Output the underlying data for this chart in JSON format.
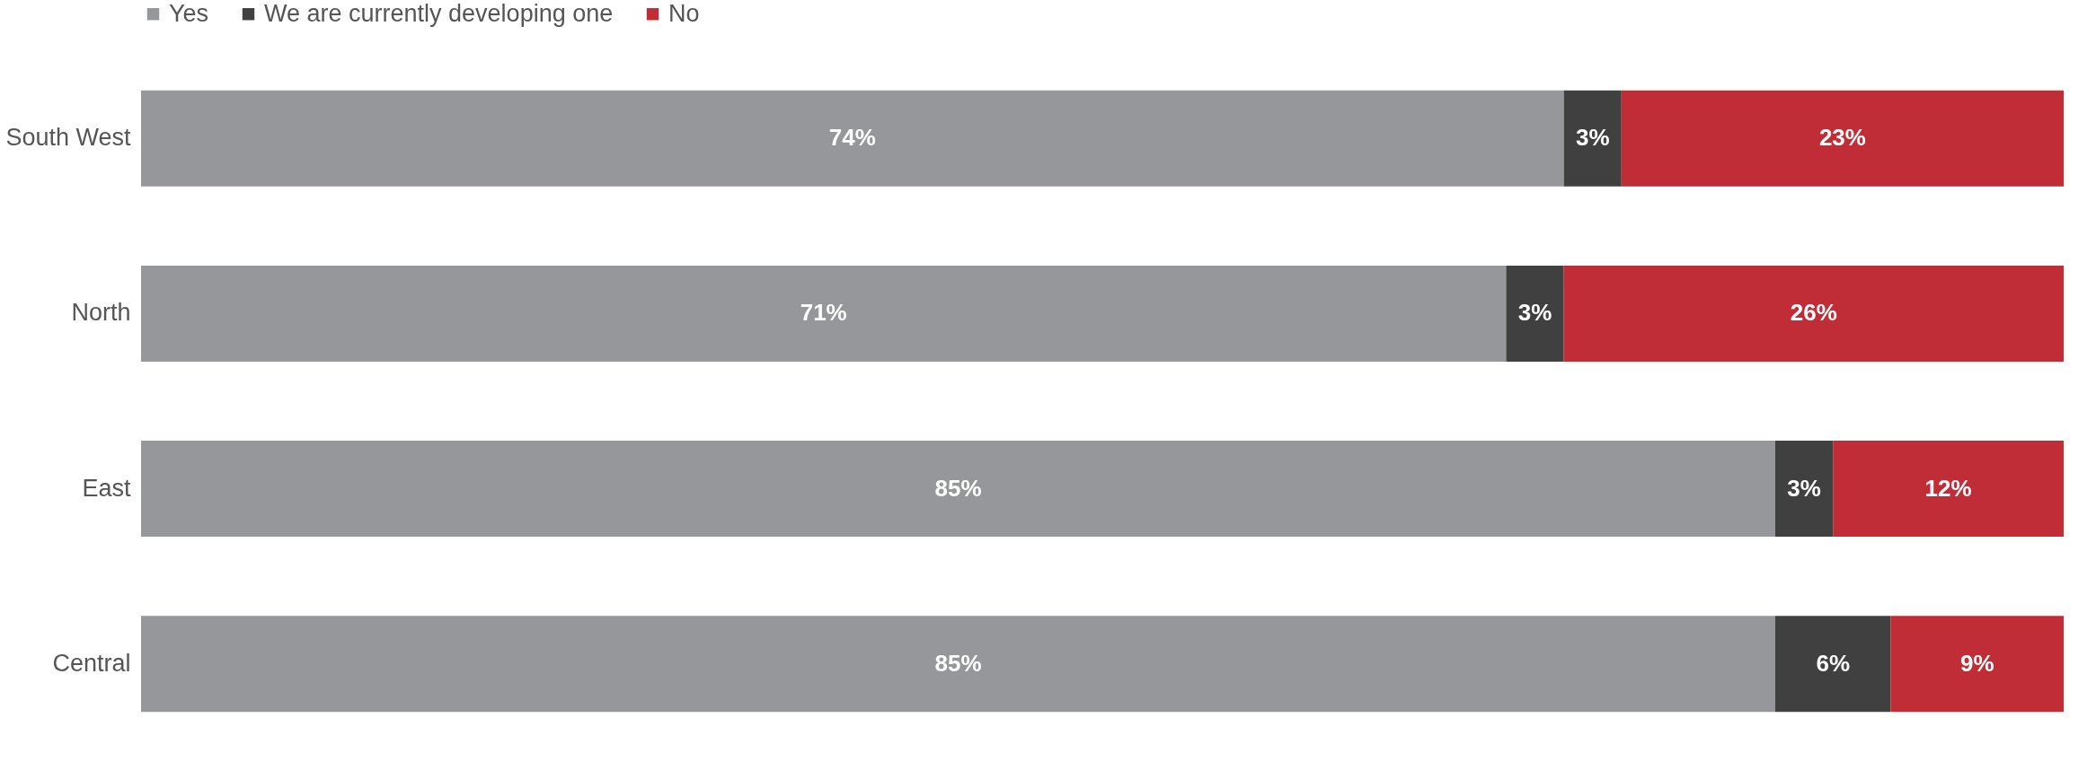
{
  "chart_data": {
    "type": "bar",
    "orientation": "horizontal",
    "stacked": true,
    "categories": [
      "South West",
      "North",
      "East",
      "Central"
    ],
    "xlim": [
      0,
      100
    ],
    "tick_labels": "y",
    "grid": false,
    "legend": "top",
    "series": [
      {
        "name": "Yes",
        "color": "#96979b",
        "values": [
          74,
          71,
          85,
          85
        ],
        "value_labels": [
          "74%",
          "71%",
          "85%",
          "85%"
        ]
      },
      {
        "name": "We are currently developing one",
        "color": "#404040",
        "values": [
          3,
          3,
          3,
          6
        ],
        "value_labels": [
          "3%",
          "3%",
          "3%",
          "6%"
        ]
      },
      {
        "name": "No",
        "color": "#c12d37",
        "values": [
          23,
          26,
          12,
          9
        ],
        "value_labels": [
          "23%",
          "26%",
          "12%",
          "9%"
        ]
      }
    ]
  }
}
